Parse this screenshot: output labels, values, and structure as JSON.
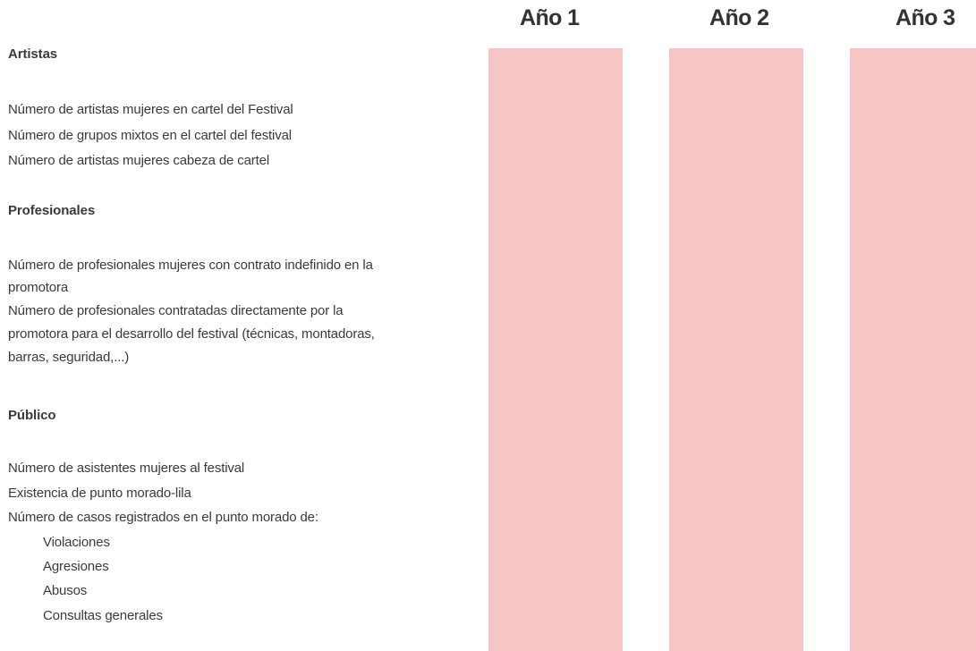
{
  "years": {
    "year1": "Año 1",
    "year2": "Año 2",
    "year3": "Año 3"
  },
  "column_color": "#f5c6c4",
  "sections": {
    "artistas": {
      "title": "Artistas",
      "items": [
        "Número de artistas mujeres en cartel del Festival",
        "Número de grupos mixtos en el cartel del festival",
        "Número de artistas mujeres cabeza de cartel"
      ]
    },
    "profesionales": {
      "title": "Profesionales",
      "items": [
        "Número de profesionales mujeres con contrato indefinido en la",
        "promotora",
        "Número de profesionales contratadas directamente por la",
        "promotora para el desarrollo del festival (técnicas, montadoras,",
        "barras, seguridad,...)"
      ]
    },
    "publico": {
      "title": "Público",
      "items": [
        "Número de asistentes mujeres al festival",
        "Existencia de punto morado-lila",
        "Número de casos registrados en el punto morado de:"
      ],
      "subitems": [
        "Violaciones",
        "Agresiones",
        "Abusos",
        "Consultas generales"
      ]
    }
  }
}
